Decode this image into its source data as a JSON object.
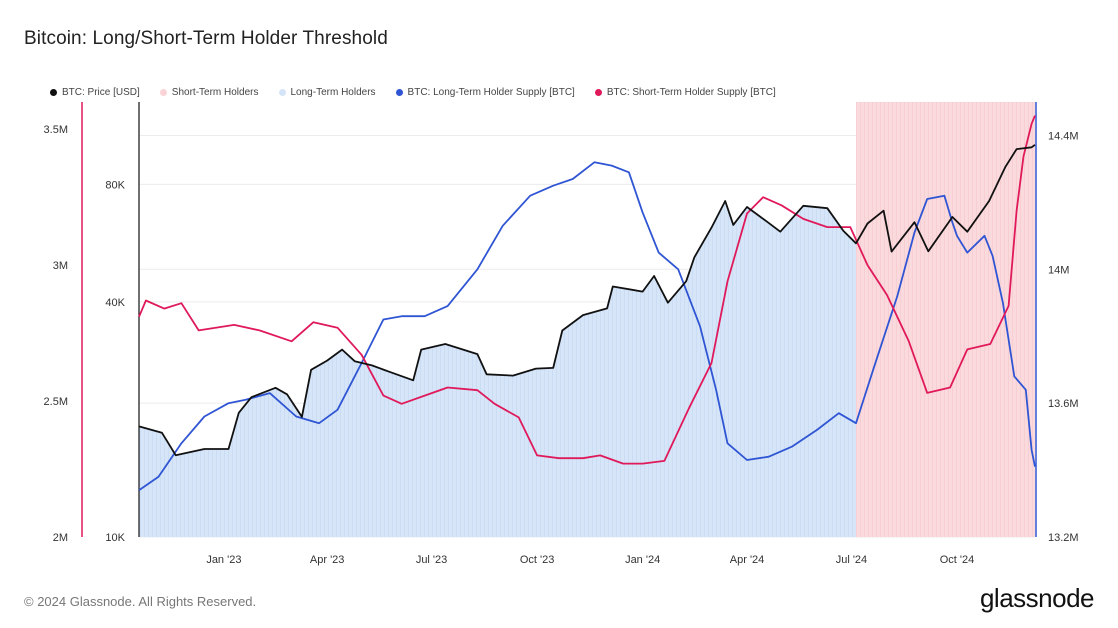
{
  "title": "Bitcoin: Long/Short-Term Holder Threshold",
  "footer": {
    "copyright": "© 2024 Glassnode. All Rights Reserved.",
    "logo": "glassnode"
  },
  "legend": [
    {
      "label": "BTC: Price [USD]",
      "color": "#111111"
    },
    {
      "label": "Short-Term Holders",
      "color": "#f9d3d6"
    },
    {
      "label": "Long-Term Holders",
      "color": "#d4e4f7"
    },
    {
      "label": "BTC: Long-Term Holder Supply [BTC]",
      "color": "#2f55d4"
    },
    {
      "label": "BTC: Short-Term Holder Supply [BTC]",
      "color": "#e0195a"
    }
  ],
  "chart_data": {
    "type": "line",
    "title": "Bitcoin: Long/Short-Term Holder Threshold",
    "x_range": [
      "2022-10-19",
      "2024-12-08"
    ],
    "x_ticks": [
      {
        "date": "2023-01-01",
        "label": "Jan '23"
      },
      {
        "date": "2023-04-01",
        "label": "Apr '23"
      },
      {
        "date": "2023-07-01",
        "label": "Jul '23"
      },
      {
        "date": "2023-10-01",
        "label": "Oct '23"
      },
      {
        "date": "2024-01-01",
        "label": "Jan '24"
      },
      {
        "date": "2024-04-01",
        "label": "Apr '24"
      },
      {
        "date": "2024-07-01",
        "label": "Jul '24"
      },
      {
        "date": "2024-10-01",
        "label": "Oct '24"
      }
    ],
    "axes": {
      "sth_supply": {
        "side": "left-outer",
        "color": "#e0195a",
        "scale": "linear",
        "ylim": [
          2000000,
          3600000
        ],
        "ticks": [
          {
            "value": 2000000,
            "label": "2M"
          },
          {
            "value": 2500000,
            "label": "2.5M"
          },
          {
            "value": 3000000,
            "label": "3M"
          },
          {
            "value": 3500000,
            "label": "3.5M"
          }
        ]
      },
      "price": {
        "side": "left-inner",
        "color": "#111111",
        "scale": "log",
        "ylim": [
          10000,
          130000
        ],
        "ticks": [
          {
            "value": 10000,
            "label": "10K"
          },
          {
            "value": 40000,
            "label": "40K"
          },
          {
            "value": 80000,
            "label": "80K"
          }
        ]
      },
      "lth_supply": {
        "side": "right",
        "color": "#2f55d4",
        "scale": "linear",
        "ylim": [
          13200000,
          14500000
        ],
        "ticks": [
          {
            "value": 13200000,
            "label": "13.2M"
          },
          {
            "value": 13600000,
            "label": "13.6M"
          },
          {
            "value": 14000000,
            "label": "14M"
          },
          {
            "value": 14400000,
            "label": "14.4M"
          }
        ]
      }
    },
    "grid": true,
    "legend_position": "top-left",
    "regime_split_date": "2024-07-05",
    "series": [
      {
        "name": "BTC: Price [USD]",
        "axis": "price",
        "color": "#111111",
        "points": [
          [
            "2022-10-19",
            19200
          ],
          [
            "2022-11-08",
            18500
          ],
          [
            "2022-11-20",
            16200
          ],
          [
            "2022-12-15",
            16800
          ],
          [
            "2023-01-05",
            16800
          ],
          [
            "2023-01-14",
            20800
          ],
          [
            "2023-01-25",
            22800
          ],
          [
            "2023-02-15",
            24100
          ],
          [
            "2023-02-25",
            23200
          ],
          [
            "2023-03-10",
            20300
          ],
          [
            "2023-03-18",
            26800
          ],
          [
            "2023-04-01",
            28300
          ],
          [
            "2023-04-14",
            30200
          ],
          [
            "2023-04-25",
            28200
          ],
          [
            "2023-05-10",
            27500
          ],
          [
            "2023-05-25",
            26500
          ],
          [
            "2023-06-15",
            25200
          ],
          [
            "2023-06-22",
            30200
          ],
          [
            "2023-07-13",
            31200
          ],
          [
            "2023-08-10",
            29400
          ],
          [
            "2023-08-18",
            26100
          ],
          [
            "2023-09-10",
            25900
          ],
          [
            "2023-09-30",
            27000
          ],
          [
            "2023-10-15",
            27100
          ],
          [
            "2023-10-23",
            33800
          ],
          [
            "2023-11-10",
            37000
          ],
          [
            "2023-12-01",
            38500
          ],
          [
            "2023-12-06",
            43800
          ],
          [
            "2024-01-01",
            42500
          ],
          [
            "2024-01-11",
            46600
          ],
          [
            "2024-01-23",
            39800
          ],
          [
            "2024-02-08",
            45200
          ],
          [
            "2024-02-15",
            52000
          ],
          [
            "2024-03-01",
            62000
          ],
          [
            "2024-03-13",
            72500
          ],
          [
            "2024-03-20",
            63000
          ],
          [
            "2024-04-01",
            70000
          ],
          [
            "2024-04-19",
            64000
          ],
          [
            "2024-04-30",
            60500
          ],
          [
            "2024-05-20",
            70500
          ],
          [
            "2024-06-10",
            69500
          ],
          [
            "2024-06-24",
            60800
          ],
          [
            "2024-07-05",
            56500
          ],
          [
            "2024-07-15",
            63500
          ],
          [
            "2024-07-29",
            68500
          ],
          [
            "2024-08-05",
            53800
          ],
          [
            "2024-08-25",
            64000
          ],
          [
            "2024-09-06",
            53900
          ],
          [
            "2024-09-27",
            66000
          ],
          [
            "2024-10-10",
            60500
          ],
          [
            "2024-10-29",
            72500
          ],
          [
            "2024-11-12",
            88500
          ],
          [
            "2024-11-22",
            98500
          ],
          [
            "2024-12-05",
            99500
          ],
          [
            "2024-12-08",
            101000
          ]
        ]
      },
      {
        "name": "BTC: Long-Term Holder Supply [BTC]",
        "axis": "lth_supply",
        "color": "#2f55d4",
        "points": [
          [
            "2022-10-19",
            13340000
          ],
          [
            "2022-11-05",
            13380000
          ],
          [
            "2022-11-25",
            13480000
          ],
          [
            "2022-12-15",
            13560000
          ],
          [
            "2023-01-05",
            13600000
          ],
          [
            "2023-01-20",
            13610000
          ],
          [
            "2023-02-10",
            13630000
          ],
          [
            "2023-03-05",
            13560000
          ],
          [
            "2023-03-25",
            13540000
          ],
          [
            "2023-04-10",
            13580000
          ],
          [
            "2023-05-01",
            13720000
          ],
          [
            "2023-05-20",
            13850000
          ],
          [
            "2023-06-05",
            13860000
          ],
          [
            "2023-06-25",
            13860000
          ],
          [
            "2023-07-15",
            13890000
          ],
          [
            "2023-08-10",
            14000000
          ],
          [
            "2023-09-01",
            14130000
          ],
          [
            "2023-09-25",
            14220000
          ],
          [
            "2023-10-15",
            14250000
          ],
          [
            "2023-11-01",
            14270000
          ],
          [
            "2023-11-20",
            14320000
          ],
          [
            "2023-12-05",
            14310000
          ],
          [
            "2023-12-20",
            14290000
          ],
          [
            "2024-01-01",
            14170000
          ],
          [
            "2024-01-15",
            14050000
          ],
          [
            "2024-02-01",
            14000000
          ],
          [
            "2024-02-20",
            13830000
          ],
          [
            "2024-03-05",
            13640000
          ],
          [
            "2024-03-15",
            13480000
          ],
          [
            "2024-04-01",
            13430000
          ],
          [
            "2024-04-20",
            13440000
          ],
          [
            "2024-05-10",
            13470000
          ],
          [
            "2024-06-01",
            13520000
          ],
          [
            "2024-06-20",
            13570000
          ],
          [
            "2024-07-05",
            13540000
          ],
          [
            "2024-07-20",
            13700000
          ],
          [
            "2024-08-10",
            13920000
          ],
          [
            "2024-08-25",
            14110000
          ],
          [
            "2024-09-05",
            14210000
          ],
          [
            "2024-09-20",
            14220000
          ],
          [
            "2024-09-27",
            14140000
          ],
          [
            "2024-10-01",
            14100000
          ],
          [
            "2024-10-10",
            14050000
          ],
          [
            "2024-10-25",
            14100000
          ],
          [
            "2024-11-01",
            14040000
          ],
          [
            "2024-11-10",
            13900000
          ],
          [
            "2024-11-20",
            13680000
          ],
          [
            "2024-11-30",
            13640000
          ],
          [
            "2024-12-05",
            13460000
          ],
          [
            "2024-12-08",
            13410000
          ]
        ]
      },
      {
        "name": "BTC: Short-Term Holder Supply [BTC]",
        "axis": "sth_supply",
        "color": "#e0195a",
        "points": [
          [
            "2022-10-19",
            2810000
          ],
          [
            "2022-10-25",
            2870000
          ],
          [
            "2022-11-10",
            2840000
          ],
          [
            "2022-11-25",
            2860000
          ],
          [
            "2022-12-10",
            2760000
          ],
          [
            "2023-01-10",
            2780000
          ],
          [
            "2023-02-01",
            2760000
          ],
          [
            "2023-03-01",
            2720000
          ],
          [
            "2023-03-20",
            2790000
          ],
          [
            "2023-04-10",
            2770000
          ],
          [
            "2023-05-01",
            2670000
          ],
          [
            "2023-05-20",
            2520000
          ],
          [
            "2023-06-05",
            2490000
          ],
          [
            "2023-06-25",
            2520000
          ],
          [
            "2023-07-15",
            2550000
          ],
          [
            "2023-08-10",
            2540000
          ],
          [
            "2023-08-25",
            2490000
          ],
          [
            "2023-09-15",
            2440000
          ],
          [
            "2023-10-01",
            2300000
          ],
          [
            "2023-10-20",
            2290000
          ],
          [
            "2023-11-10",
            2290000
          ],
          [
            "2023-11-25",
            2300000
          ],
          [
            "2023-12-15",
            2270000
          ],
          [
            "2024-01-01",
            2270000
          ],
          [
            "2024-01-20",
            2280000
          ],
          [
            "2024-02-10",
            2470000
          ],
          [
            "2024-03-01",
            2640000
          ],
          [
            "2024-03-15",
            2940000
          ],
          [
            "2024-04-01",
            3190000
          ],
          [
            "2024-04-15",
            3250000
          ],
          [
            "2024-05-01",
            3220000
          ],
          [
            "2024-05-20",
            3170000
          ],
          [
            "2024-06-10",
            3140000
          ],
          [
            "2024-06-30",
            3140000
          ],
          [
            "2024-07-15",
            3000000
          ],
          [
            "2024-08-01",
            2890000
          ],
          [
            "2024-08-20",
            2720000
          ],
          [
            "2024-09-05",
            2530000
          ],
          [
            "2024-09-25",
            2550000
          ],
          [
            "2024-10-10",
            2690000
          ],
          [
            "2024-10-30",
            2710000
          ],
          [
            "2024-11-15",
            2850000
          ],
          [
            "2024-11-22",
            3200000
          ],
          [
            "2024-11-28",
            3400000
          ],
          [
            "2024-12-05",
            3520000
          ],
          [
            "2024-12-08",
            3550000
          ]
        ]
      }
    ]
  }
}
